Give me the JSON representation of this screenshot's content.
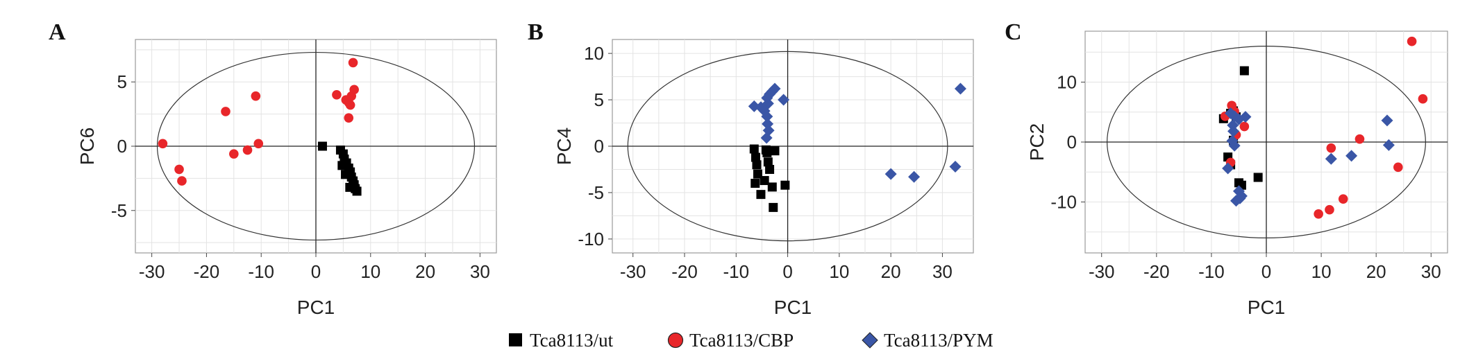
{
  "legend": [
    {
      "label": "Tca8113/ut",
      "color": "#000000",
      "marker": "square"
    },
    {
      "label": "Tca8113/CBP",
      "color": "#e8262a",
      "marker": "circle"
    },
    {
      "label": "Tca8113/PYM",
      "color": "#3a56a6",
      "marker": "diamond"
    }
  ],
  "chart_data": [
    {
      "panel": "A",
      "type": "scatter",
      "xlabel": "PC1",
      "ylabel": "PC6",
      "xlim": [
        -33,
        33
      ],
      "ylim": [
        -8.3,
        8.3
      ],
      "xticks": [
        -30,
        -20,
        -10,
        0,
        10,
        20,
        30
      ],
      "yticks": [
        -5,
        0,
        5
      ],
      "grid": true,
      "ellipse": {
        "rx": 29,
        "ry": 7.3
      },
      "series": [
        {
          "name": "Tca8113/ut",
          "color": "#000000",
          "marker": "square",
          "points": [
            [
              1.2,
              0.0
            ],
            [
              4.5,
              -0.3
            ],
            [
              5.0,
              -0.6
            ],
            [
              5.2,
              -1.0
            ],
            [
              5.6,
              -1.3
            ],
            [
              6.0,
              -1.7
            ],
            [
              6.3,
              -2.0
            ],
            [
              6.5,
              -2.4
            ],
            [
              6.8,
              -2.7
            ],
            [
              7.0,
              -3.0
            ],
            [
              7.2,
              -3.3
            ],
            [
              7.5,
              -3.5
            ],
            [
              6.2,
              -3.2
            ],
            [
              5.4,
              -2.2
            ],
            [
              4.8,
              -1.5
            ]
          ]
        },
        {
          "name": "Tca8113/CBP",
          "color": "#e8262a",
          "marker": "circle",
          "points": [
            [
              -28,
              0.2
            ],
            [
              -25,
              -1.8
            ],
            [
              -24.5,
              -2.7
            ],
            [
              -16.5,
              2.7
            ],
            [
              -15,
              -0.6
            ],
            [
              -12.5,
              -0.3
            ],
            [
              -11,
              3.9
            ],
            [
              -10.5,
              0.2
            ],
            [
              3.8,
              4.0
            ],
            [
              5.5,
              3.6
            ],
            [
              6.0,
              2.2
            ],
            [
              6.0,
              3.4
            ],
            [
              6.3,
              3.2
            ],
            [
              6.8,
              6.5
            ],
            [
              7.0,
              4.4
            ],
            [
              6.5,
              3.9
            ]
          ]
        },
        {
          "name": "Tca8113/PYM",
          "color": "#3a56a6",
          "marker": "diamond",
          "points": []
        }
      ]
    },
    {
      "panel": "B",
      "type": "scatter",
      "xlabel": "PC1",
      "ylabel": "PC4",
      "xlim": [
        -34,
        36
      ],
      "ylim": [
        -11.5,
        11.5
      ],
      "xticks": [
        -30,
        -20,
        -10,
        0,
        10,
        20,
        30
      ],
      "yticks": [
        -10,
        -5,
        0,
        5,
        10
      ],
      "grid": true,
      "ellipse": {
        "rx": 31,
        "ry": 10.2
      },
      "series": [
        {
          "name": "Tca8113/ut",
          "color": "#000000",
          "marker": "square",
          "points": [
            [
              -6.5,
              -0.3
            ],
            [
              -6.2,
              -1.2
            ],
            [
              -6,
              -2.0
            ],
            [
              -5.8,
              -3.0
            ],
            [
              -6.3,
              -4.0
            ],
            [
              -5.2,
              -5.2
            ],
            [
              -4.5,
              -3.7
            ],
            [
              -4,
              -0.7
            ],
            [
              -3.8,
              -1.7
            ],
            [
              -3.5,
              -2.5
            ],
            [
              -3,
              -4.4
            ],
            [
              -2.8,
              -6.6
            ],
            [
              -0.5,
              -4.2
            ],
            [
              -4.2,
              -0.4
            ],
            [
              -2.5,
              -0.5
            ]
          ]
        },
        {
          "name": "Tca8113/CBP",
          "color": "#e8262a",
          "marker": "circle",
          "points": []
        },
        {
          "name": "Tca8113/PYM",
          "color": "#3a56a6",
          "marker": "diamond",
          "points": [
            [
              -6.5,
              4.3
            ],
            [
              -5.2,
              4.2
            ],
            [
              -4.5,
              3.8
            ],
            [
              -4.0,
              5.2
            ],
            [
              -3.8,
              4.6
            ],
            [
              -3.5,
              5.6
            ],
            [
              -3,
              5.9
            ],
            [
              -2.5,
              6.2
            ],
            [
              -4.0,
              3.2
            ],
            [
              -3.9,
              2.4
            ],
            [
              -3.7,
              1.7
            ],
            [
              -4.1,
              0.9
            ],
            [
              -0.8,
              5.0
            ],
            [
              20,
              -3.0
            ],
            [
              24.5,
              -3.3
            ],
            [
              32.5,
              -2.2
            ],
            [
              33.5,
              6.2
            ]
          ]
        }
      ]
    },
    {
      "panel": "C",
      "type": "scatter",
      "xlabel": "PC1",
      "ylabel": "PC2",
      "xlim": [
        -33,
        33
      ],
      "ylim": [
        -18.5,
        18.5
      ],
      "xticks": [
        -30,
        -20,
        -10,
        0,
        10,
        20,
        30
      ],
      "yticks": [
        -10,
        0,
        10
      ],
      "grid": true,
      "ellipse": {
        "rx": 29,
        "ry": 16
      },
      "series": [
        {
          "name": "Tca8113/ut",
          "color": "#000000",
          "marker": "square",
          "points": [
            [
              -7.8,
              3.9
            ],
            [
              -6.5,
              4.8
            ],
            [
              -6,
              5.2
            ],
            [
              -5.5,
              4.2
            ],
            [
              -4,
              11.9
            ],
            [
              -7,
              -2.5
            ],
            [
              -6.5,
              -3.8
            ],
            [
              -5,
              -6.8
            ],
            [
              -4.5,
              -7.2
            ],
            [
              -1.5,
              -5.9
            ],
            [
              -6.0,
              0.3
            ]
          ]
        },
        {
          "name": "Tca8113/CBP",
          "color": "#e8262a",
          "marker": "circle",
          "points": [
            [
              -7.5,
              4.3
            ],
            [
              -6.3,
              6.1
            ],
            [
              -5.8,
              5.1
            ],
            [
              -5.5,
              1.2
            ],
            [
              -6.5,
              -3.4
            ],
            [
              -4,
              2.6
            ],
            [
              9.5,
              -12.0
            ],
            [
              11.5,
              -11.3
            ],
            [
              11.8,
              -1.0
            ],
            [
              14,
              -9.5
            ],
            [
              17,
              0.5
            ],
            [
              24,
              -4.2
            ],
            [
              26.5,
              16.8
            ],
            [
              28.5,
              7.2
            ]
          ]
        },
        {
          "name": "Tca8113/PYM",
          "color": "#3a56a6",
          "marker": "diamond",
          "points": [
            [
              -6.5,
              4.8
            ],
            [
              -5.8,
              4.3
            ],
            [
              -5,
              3.8
            ],
            [
              -3.8,
              4.2
            ],
            [
              -6,
              1.8
            ],
            [
              -6.2,
              0.2
            ],
            [
              -5.8,
              -0.6
            ],
            [
              -7,
              -4.4
            ],
            [
              -5,
              -8.2
            ],
            [
              -4.8,
              -9.4
            ],
            [
              -4.5,
              -9.0
            ],
            [
              -5.5,
              -9.8
            ],
            [
              -6.1,
              2.8
            ],
            [
              11.8,
              -2.8
            ],
            [
              15.5,
              -2.3
            ],
            [
              22,
              3.6
            ],
            [
              22.3,
              -0.5
            ]
          ]
        }
      ]
    }
  ]
}
